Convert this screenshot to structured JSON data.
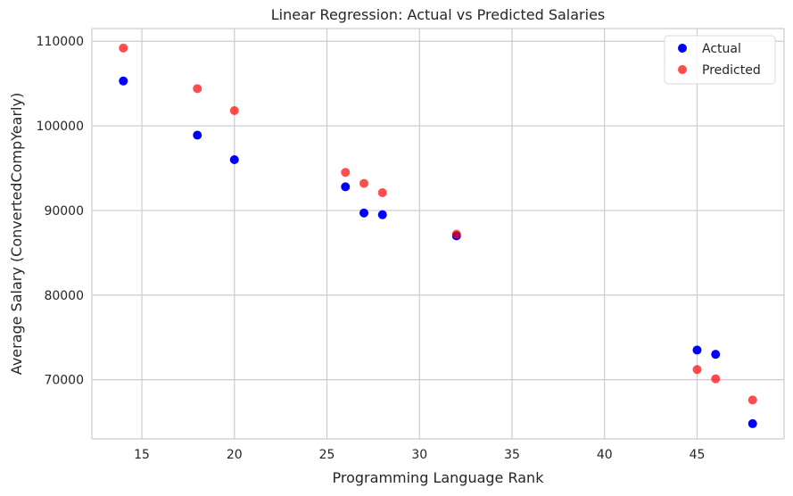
{
  "chart_data": {
    "type": "scatter",
    "title": "Linear Regression: Actual vs Predicted Salaries",
    "xlabel": "Programming Language Rank",
    "ylabel": "Average Salary (ConvertedCompYearly)",
    "xlim": [
      12.3,
      49.7
    ],
    "ylim": [
      63000,
      111500
    ],
    "xticks": [
      15,
      20,
      25,
      30,
      35,
      40,
      45
    ],
    "yticks": [
      70000,
      80000,
      90000,
      100000,
      110000
    ],
    "grid": true,
    "legend_position": "top-right",
    "series": [
      {
        "name": "Actual",
        "color": "#0000ff",
        "alpha": 1.0,
        "points": [
          {
            "x": 14,
            "y": 105300
          },
          {
            "x": 18,
            "y": 98900
          },
          {
            "x": 20,
            "y": 96000
          },
          {
            "x": 26,
            "y": 92800
          },
          {
            "x": 27,
            "y": 89700
          },
          {
            "x": 28,
            "y": 89500
          },
          {
            "x": 32,
            "y": 87000
          },
          {
            "x": 45,
            "y": 73500
          },
          {
            "x": 46,
            "y": 73000
          },
          {
            "x": 48,
            "y": 64800
          }
        ]
      },
      {
        "name": "Predicted",
        "color": "#ff0000",
        "alpha": 0.7,
        "points": [
          {
            "x": 14,
            "y": 109200
          },
          {
            "x": 18,
            "y": 104400
          },
          {
            "x": 20,
            "y": 101800
          },
          {
            "x": 26,
            "y": 94500
          },
          {
            "x": 27,
            "y": 93200
          },
          {
            "x": 28,
            "y": 92100
          },
          {
            "x": 32,
            "y": 87200
          },
          {
            "x": 45,
            "y": 71200
          },
          {
            "x": 46,
            "y": 70100
          },
          {
            "x": 48,
            "y": 67600
          }
        ]
      }
    ]
  }
}
